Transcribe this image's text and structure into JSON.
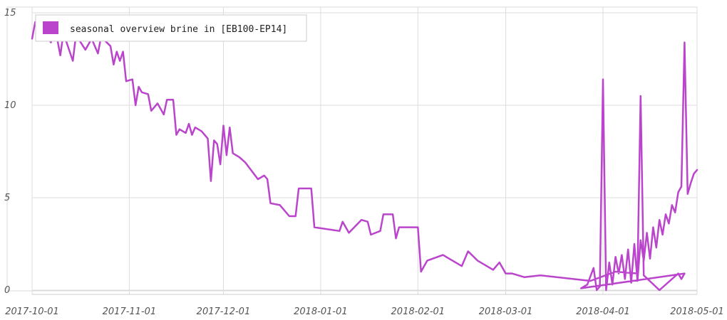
{
  "chart_data": {
    "type": "line",
    "title": "",
    "xlabel": "",
    "ylabel": "",
    "xlim": [
      "2017-10-01",
      "2018-05-01"
    ],
    "ylim": [
      0,
      15
    ],
    "y_ticks": [
      0,
      5,
      10,
      15
    ],
    "x_ticks": [
      "2017-10-01",
      "2017-11-01",
      "2017-12-01",
      "2018-01-01",
      "2018-02-01",
      "2018-03-01",
      "2018-04-01",
      "2018-05-01"
    ],
    "grid": true,
    "legend": {
      "position": "top-left"
    },
    "series": [
      {
        "name": "seasonal overview brine in [EB100-EP14]",
        "color": "#bb44cc",
        "points": [
          [
            "2017-10-01",
            13.6
          ],
          [
            "2017-10-02",
            14.5
          ],
          [
            "2017-10-03",
            13.9
          ],
          [
            "2017-10-04",
            14.3
          ],
          [
            "2017-10-07",
            13.4
          ],
          [
            "2017-10-08",
            13.9
          ],
          [
            "2017-10-09",
            13.6
          ],
          [
            "2017-10-10",
            12.7
          ],
          [
            "2017-10-11",
            13.9
          ],
          [
            "2017-10-14",
            12.4
          ],
          [
            "2017-10-15",
            13.8
          ],
          [
            "2017-10-18",
            13.0
          ],
          [
            "2017-10-20",
            13.6
          ],
          [
            "2017-10-22",
            12.8
          ],
          [
            "2017-10-23",
            13.7
          ],
          [
            "2017-10-26",
            13.2
          ],
          [
            "2017-10-27",
            12.2
          ],
          [
            "2017-10-28",
            12.9
          ],
          [
            "2017-10-29",
            12.4
          ],
          [
            "2017-10-30",
            12.9
          ],
          [
            "2017-10-31",
            11.3
          ],
          [
            "2017-11-02",
            11.4
          ],
          [
            "2017-11-03",
            10.0
          ],
          [
            "2017-11-04",
            11.0
          ],
          [
            "2017-11-05",
            10.7
          ],
          [
            "2017-11-07",
            10.6
          ],
          [
            "2017-11-08",
            9.7
          ],
          [
            "2017-11-10",
            10.1
          ],
          [
            "2017-11-12",
            9.5
          ],
          [
            "2017-11-13",
            10.3
          ],
          [
            "2017-11-15",
            10.3
          ],
          [
            "2017-11-16",
            8.4
          ],
          [
            "2017-11-17",
            8.7
          ],
          [
            "2017-11-19",
            8.5
          ],
          [
            "2017-11-20",
            9.0
          ],
          [
            "2017-11-21",
            8.4
          ],
          [
            "2017-11-22",
            8.8
          ],
          [
            "2017-11-24",
            8.6
          ],
          [
            "2017-11-26",
            8.2
          ],
          [
            "2017-11-27",
            5.9
          ],
          [
            "2017-11-28",
            8.1
          ],
          [
            "2017-11-29",
            7.9
          ],
          [
            "2017-11-30",
            6.8
          ],
          [
            "2017-12-01",
            8.9
          ],
          [
            "2017-12-02",
            7.3
          ],
          [
            "2017-12-03",
            8.8
          ],
          [
            "2017-12-04",
            7.4
          ],
          [
            "2017-12-06",
            7.2
          ],
          [
            "2017-12-08",
            6.9
          ],
          [
            "2017-12-12",
            6.0
          ],
          [
            "2017-12-14",
            6.2
          ],
          [
            "2017-12-15",
            6.0
          ],
          [
            "2017-12-16",
            4.7
          ],
          [
            "2017-12-19",
            4.6
          ],
          [
            "2017-12-22",
            4.0
          ],
          [
            "2017-12-24",
            4.0
          ],
          [
            "2017-12-25",
            5.5
          ],
          [
            "2017-12-29",
            5.5
          ],
          [
            "2017-12-30",
            3.4
          ],
          [
            "2018-01-07",
            3.2
          ],
          [
            "2018-01-08",
            3.7
          ],
          [
            "2018-01-10",
            3.1
          ],
          [
            "2018-01-14",
            3.8
          ],
          [
            "2018-01-16",
            3.7
          ],
          [
            "2018-01-17",
            3.0
          ],
          [
            "2018-01-20",
            3.2
          ],
          [
            "2018-01-21",
            4.1
          ],
          [
            "2018-01-24",
            4.1
          ],
          [
            "2018-01-25",
            2.8
          ],
          [
            "2018-01-26",
            3.4
          ],
          [
            "2018-02-01",
            3.4
          ],
          [
            "2018-02-02",
            1.0
          ],
          [
            "2018-02-04",
            1.6
          ],
          [
            "2018-02-09",
            1.9
          ],
          [
            "2018-02-15",
            1.3
          ],
          [
            "2018-02-17",
            2.1
          ],
          [
            "2018-02-20",
            1.6
          ],
          [
            "2018-02-25",
            1.1
          ],
          [
            "2018-02-27",
            1.5
          ],
          [
            "2018-03-01",
            0.9
          ],
          [
            "2018-03-03",
            0.9
          ],
          [
            "2018-03-07",
            0.7
          ],
          [
            "2018-03-12",
            0.8
          ],
          [
            "2018-03-28",
            0.5
          ],
          [
            "2018-04-05",
            1.0
          ],
          [
            "2018-04-12",
            0.9
          ],
          [
            "2018-04-13",
            10.5
          ],
          [
            "2018-04-14",
            0.8
          ],
          [
            "2018-04-19",
            0.0
          ],
          [
            "2018-04-25",
            0.9
          ],
          [
            "2018-04-26",
            0.6
          ],
          [
            "2018-04-27",
            0.9
          ],
          [
            "2018-03-25",
            0.1
          ],
          [
            "2018-03-27",
            0.3
          ],
          [
            "2018-03-29",
            1.2
          ],
          [
            "2018-03-30",
            0.0
          ],
          [
            "2018-03-31",
            0.2
          ],
          [
            "2018-04-01",
            11.4
          ],
          [
            "2018-04-02",
            0.0
          ],
          [
            "2018-04-03",
            1.5
          ],
          [
            "2018-04-04",
            0.3
          ],
          [
            "2018-04-05",
            1.8
          ],
          [
            "2018-04-06",
            0.9
          ],
          [
            "2018-04-07",
            1.9
          ],
          [
            "2018-04-08",
            0.6
          ],
          [
            "2018-04-09",
            2.2
          ],
          [
            "2018-04-10",
            0.4
          ],
          [
            "2018-04-11",
            2.5
          ],
          [
            "2018-04-12",
            0.5
          ],
          [
            "2018-04-13",
            2.7
          ],
          [
            "2018-04-14",
            1.6
          ],
          [
            "2018-04-15",
            3.1
          ],
          [
            "2018-04-16",
            1.7
          ],
          [
            "2018-04-17",
            3.4
          ],
          [
            "2018-04-18",
            2.3
          ],
          [
            "2018-04-19",
            3.8
          ],
          [
            "2018-04-20",
            3.0
          ],
          [
            "2018-04-21",
            4.1
          ],
          [
            "2018-04-22",
            3.6
          ],
          [
            "2018-04-23",
            4.6
          ],
          [
            "2018-04-24",
            4.2
          ],
          [
            "2018-04-25",
            5.3
          ],
          [
            "2018-04-26",
            5.6
          ],
          [
            "2018-04-27",
            13.4
          ],
          [
            "2018-04-28",
            5.2
          ],
          [
            "2018-04-29",
            5.8
          ],
          [
            "2018-04-30",
            6.3
          ],
          [
            "2018-05-01",
            6.5
          ]
        ]
      }
    ]
  }
}
